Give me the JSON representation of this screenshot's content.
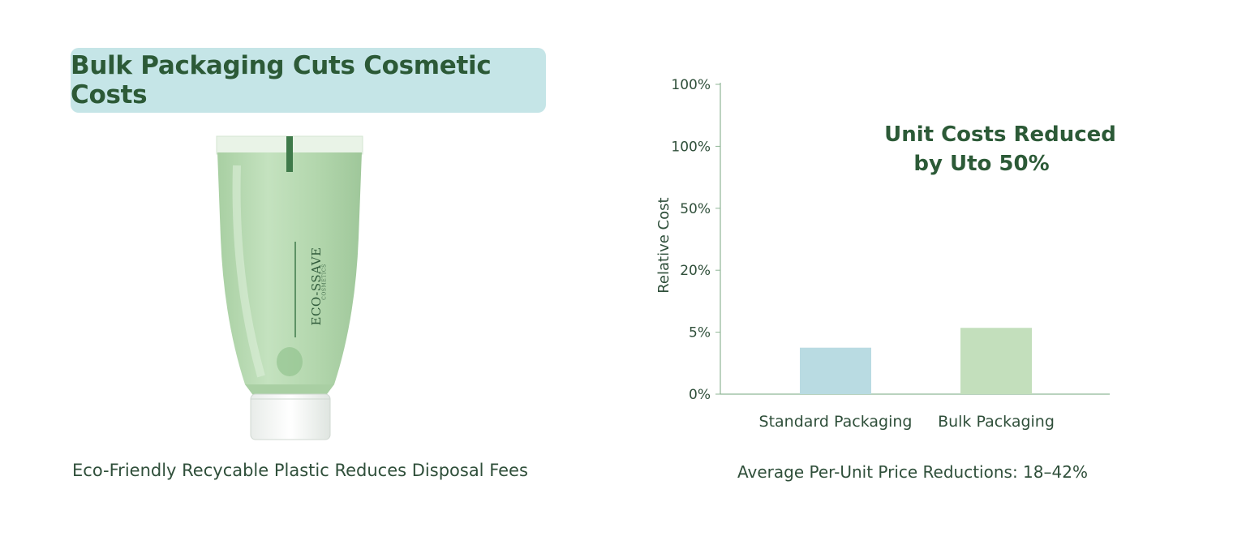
{
  "banner": {
    "title": "Bulk Packaging Cuts Cosmetic Costs"
  },
  "product": {
    "brand": "ECO-SSAVE",
    "subbrand": "COSMETICS"
  },
  "left_caption": "Eco-Friendly Recycable Plastic Reduces Disposal Fees",
  "right_caption": "Average Per-Unit Price Reductions: 18–42%",
  "colors": {
    "title_bg": "#c5e5e7",
    "title_text": "#2c5a37",
    "standard_bar": "#b9dbe2",
    "bulk_bar": "#c3dfbc",
    "tube_green": "#b6d9b1",
    "axis": "#8fb696"
  },
  "chart_data": {
    "type": "bar",
    "categories": [
      "Standard Packaging",
      "Bulk Packaging"
    ],
    "values": [
      0.75,
      1.07
    ],
    "value_note": "values expressed in tick-slot units (0 = '0%', 1 = '5%', ... 5 = '100%')",
    "ytick_labels": [
      "0%",
      "5%",
      "20%",
      "50%",
      "100%",
      "100%"
    ],
    "ylabel": "Relative Cost",
    "xlabel": "",
    "annotation_line1": "Unit Costs Reduced",
    "annotation_line2": "by Uto 50%",
    "grid": false,
    "legend": "none"
  }
}
